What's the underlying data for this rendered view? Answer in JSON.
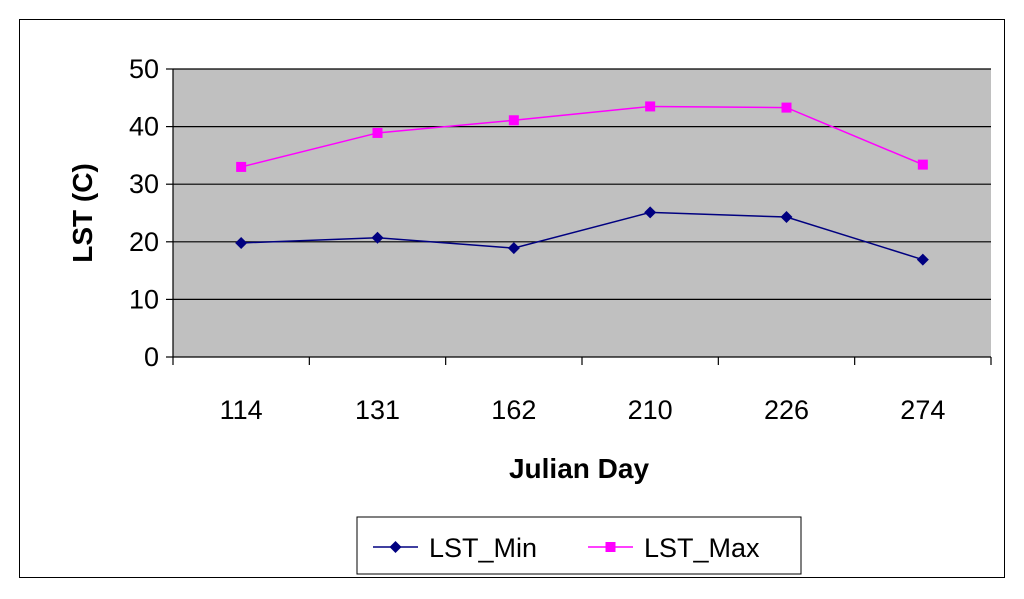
{
  "chart_data": {
    "type": "line",
    "title": "",
    "xlabel": "Julian Day",
    "ylabel": "LST (C)",
    "categories": [
      "114",
      "131",
      "162",
      "210",
      "226",
      "274"
    ],
    "ylim": [
      0,
      50
    ],
    "yticks": [
      0,
      10,
      20,
      30,
      40,
      50
    ],
    "grid": true,
    "plot_background": "#C0C0C0",
    "legend_position": "bottom",
    "series": [
      {
        "name": "LST_Min",
        "values": [
          19.8,
          20.7,
          18.9,
          25.1,
          24.3,
          16.9
        ],
        "color": "#000080",
        "marker": "diamond"
      },
      {
        "name": "LST_Max",
        "values": [
          33.0,
          38.9,
          41.1,
          43.5,
          43.3,
          33.4
        ],
        "color": "#FF00FF",
        "marker": "square"
      }
    ]
  }
}
